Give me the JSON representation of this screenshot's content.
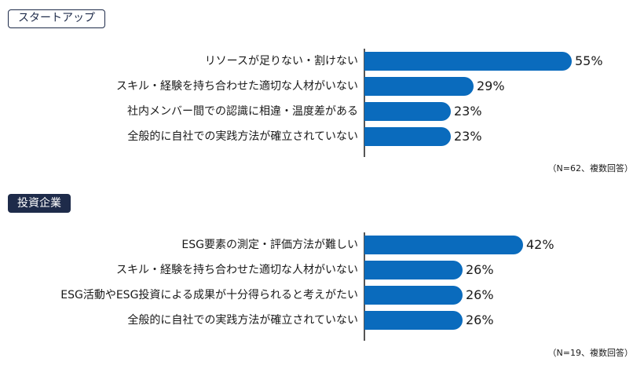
{
  "chart_data": [
    {
      "type": "bar",
      "orientation": "horizontal",
      "title": "スタートアップ",
      "categories": [
        "リソースが足りない・割けない",
        "スキル・経験を持ち合わせた適切な人材がいない",
        "社内メンバー間での認識に相違・温度差がある",
        "全般的に自社での実践方法が確立されていない"
      ],
      "values": [
        55,
        29,
        23,
        23
      ],
      "value_suffix": "%",
      "xlim": [
        0,
        100
      ],
      "note": "（N=62、複数回答）",
      "color": "#0a6bbd"
    },
    {
      "type": "bar",
      "orientation": "horizontal",
      "title": "投資企業",
      "categories": [
        "ESG要素の測定・評価方法が難しい",
        "スキル・経験を持ち合わせた適切な人材がいない",
        "ESG活動やESG投資による成果が十分得られると考えがたい",
        "全般的に自社での実践方法が確立されていない"
      ],
      "values": [
        42,
        26,
        26,
        26
      ],
      "value_suffix": "%",
      "xlim": [
        0,
        100
      ],
      "note": "（N=19、複数回答）",
      "color": "#0a6bbd"
    }
  ]
}
